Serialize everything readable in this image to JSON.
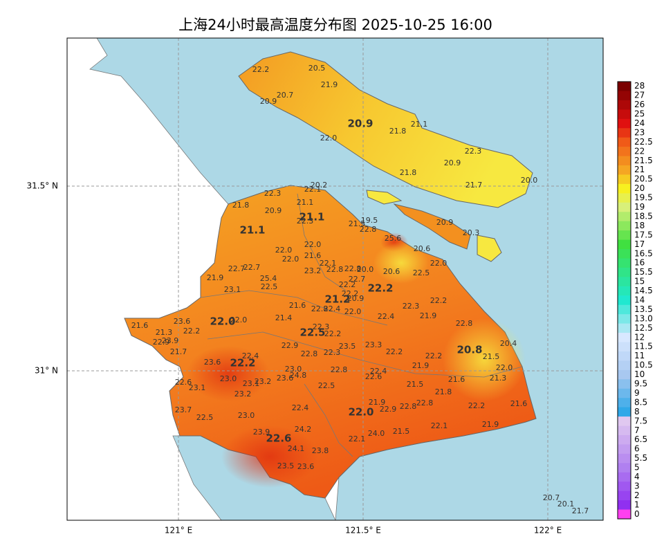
{
  "title": "上海24小时最高温度分布图 2025-10-25 16:00",
  "axes": {
    "x_labels": [
      "121° E",
      "121.5° E",
      "122° E"
    ],
    "y_labels": [
      "31.5° N",
      "31° N"
    ]
  },
  "colorbar": {
    "labels": [
      "28",
      "27",
      "26",
      "25",
      "24",
      "23",
      "22.5",
      "22",
      "21.5",
      "21",
      "20.5",
      "20",
      "19.5",
      "19",
      "18.5",
      "18",
      "17.5",
      "17",
      "16.5",
      "16",
      "15.5",
      "15",
      "14.5",
      "14",
      "13.5",
      "13.0",
      "12.5",
      "12",
      "11.5",
      "11",
      "10.5",
      "10",
      "9.5",
      "9",
      "8.5",
      "8",
      "7.5",
      "7",
      "6.5",
      "6",
      "5.5",
      "5",
      "4",
      "3",
      "2",
      "1",
      "0"
    ]
  },
  "stations": [
    "22.2",
    "20.5",
    "21.9",
    "20.7",
    "20.9",
    "21.8",
    "21.1",
    "22.0",
    "22.3",
    "20.9",
    "21.8",
    "21.7",
    "20.0",
    "20.9",
    "20.3",
    "22.3",
    "22.1",
    "20.2",
    "21.8",
    "21.1",
    "20.9",
    "22.3",
    "21.5",
    "19.5",
    "22.8",
    "25.6",
    "20.6",
    "22.0",
    "22.0",
    "22.0",
    "21.6",
    "22.1",
    "22.0",
    "22.7",
    "22.7",
    "23.2",
    "22.8",
    "22.8",
    "20.0",
    "20.6",
    "22.5",
    "21.9",
    "25.4",
    "22.7",
    "22.5",
    "22.2",
    "23.1",
    "22.2",
    "20.9",
    "21.6",
    "22.3",
    "22.2",
    "22.8",
    "22.4",
    "22.0",
    "22.4",
    "21.9",
    "23.6",
    "22.0",
    "21.4",
    "21.6",
    "22.3",
    "22.8",
    "21.3",
    "22.2",
    "22.2",
    "22.9",
    "23.9",
    "23.5",
    "23.3",
    "20.4",
    "22.9",
    "21.7",
    "22.8",
    "22.3",
    "22.2",
    "22.2",
    "21.5",
    "22.4",
    "23.6",
    "21.9",
    "23.0",
    "22.8",
    "22.0",
    "22.4",
    "22.6",
    "23.0",
    "23.2",
    "23.1",
    "23.6",
    "24.8",
    "21.6",
    "21.3",
    "22.6",
    "23.1",
    "22.5",
    "21.5",
    "21.8",
    "23.2",
    "21.9",
    "22.8",
    "22.8",
    "22.9",
    "22.2",
    "21.6",
    "22.4",
    "23.7",
    "23.0",
    "22.5",
    "22.1",
    "21.9",
    "21.5",
    "24.0",
    "24.2",
    "23.9",
    "22.1",
    "24.1",
    "23.8",
    "23.5",
    "23.6",
    "20.7",
    "20.1",
    "21.7"
  ],
  "district_labels": [
    "20.9",
    "21.1",
    "21.1",
    "22.2",
    "21.2",
    "22.0",
    "22.5",
    "22.2",
    "20.8",
    "22.0",
    "22.6"
  ]
}
